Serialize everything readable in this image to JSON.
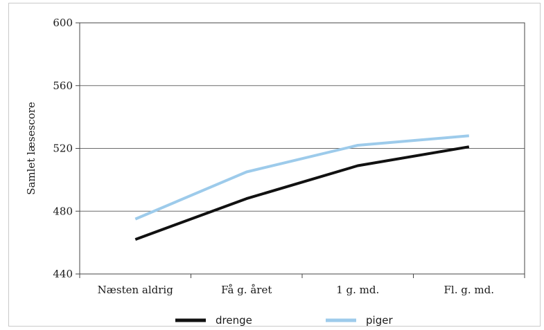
{
  "chart_data": {
    "type": "line",
    "ylabel": "Samlet læsescore",
    "xlabel": "",
    "title": "",
    "categories": [
      "Næsten aldrig",
      "Få g. året",
      "1 g. md.",
      "Fl. g. md."
    ],
    "ylim": [
      440,
      600
    ],
    "yticks": [
      440,
      480,
      520,
      560,
      600
    ],
    "grid": true,
    "legend_position": "bottom",
    "series": [
      {
        "name": "drenge",
        "color": "#111111",
        "values": [
          462,
          488,
          509,
          521
        ]
      },
      {
        "name": "piger",
        "color": "#9dcbeb",
        "values": [
          475,
          505,
          522,
          528
        ]
      }
    ]
  }
}
